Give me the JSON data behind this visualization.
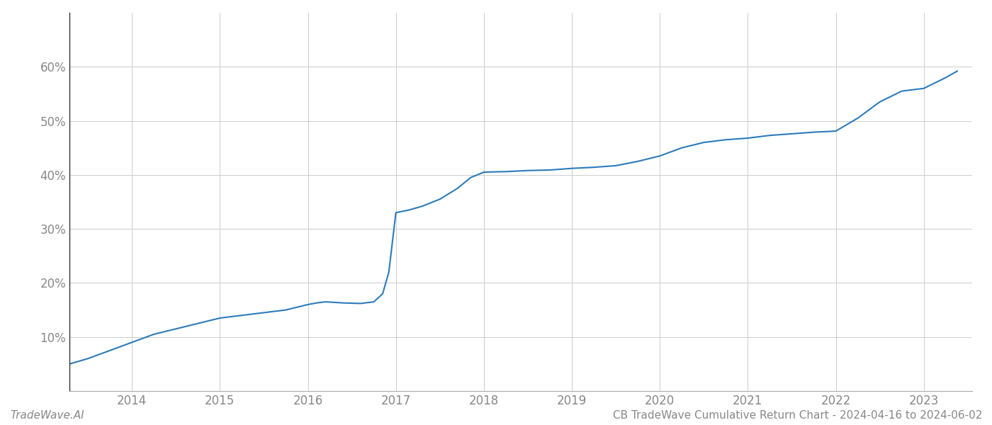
{
  "title": "CB TradeWave Cumulative Return Chart - 2024-04-16 to 2024-06-02",
  "watermark": "TradeWave.AI",
  "line_color": "#2b7bba",
  "line_width": 1.5,
  "background_color": "#ffffff",
  "grid_color": "#cccccc",
  "x_years": [
    2014,
    2015,
    2016,
    2017,
    2018,
    2019,
    2020,
    2021,
    2022,
    2023
  ],
  "x_data": [
    2013.29,
    2013.5,
    2013.75,
    2014.0,
    2014.25,
    2014.5,
    2014.75,
    2015.0,
    2015.25,
    2015.5,
    2015.75,
    2016.0,
    2016.1,
    2016.2,
    2016.4,
    2016.6,
    2016.75,
    2016.85,
    2016.92,
    2017.0,
    2017.15,
    2017.3,
    2017.5,
    2017.7,
    2017.85,
    2018.0,
    2018.25,
    2018.5,
    2018.75,
    2019.0,
    2019.25,
    2019.5,
    2019.75,
    2020.0,
    2020.25,
    2020.5,
    2020.75,
    2021.0,
    2021.1,
    2021.25,
    2021.5,
    2021.75,
    2022.0,
    2022.25,
    2022.5,
    2022.75,
    2023.0,
    2023.25,
    2023.38
  ],
  "y_data": [
    5.0,
    6.0,
    7.5,
    9.0,
    10.5,
    11.5,
    12.5,
    13.5,
    14.0,
    14.5,
    15.0,
    16.0,
    16.3,
    16.5,
    16.3,
    16.2,
    16.5,
    18.0,
    22.0,
    33.0,
    33.5,
    34.2,
    35.5,
    37.5,
    39.5,
    40.5,
    40.6,
    40.8,
    40.9,
    41.2,
    41.4,
    41.7,
    42.5,
    43.5,
    45.0,
    46.0,
    46.5,
    46.8,
    47.0,
    47.3,
    47.6,
    47.9,
    48.1,
    50.5,
    53.5,
    55.5,
    56.0,
    58.0,
    59.2
  ],
  "ylim": [
    0,
    70
  ],
  "xlim": [
    2013.29,
    2023.55
  ],
  "yticks": [
    10,
    20,
    30,
    40,
    50,
    60
  ],
  "ytick_labels": [
    "10%",
    "20%",
    "30%",
    "40%",
    "50%",
    "60%"
  ],
  "tick_color": "#888888",
  "spine_color": "#aaaaaa",
  "ylabel_fontsize": 12,
  "xlabel_fontsize": 12,
  "title_fontsize": 11,
  "watermark_fontsize": 11
}
